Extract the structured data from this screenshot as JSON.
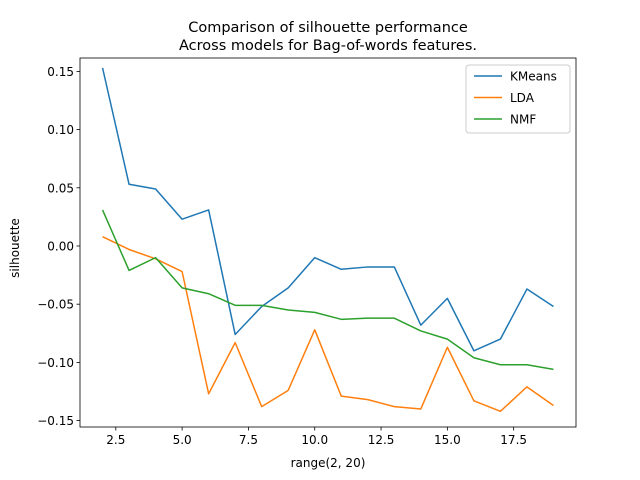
{
  "chart_data": {
    "type": "line",
    "title_line1": "Comparison of silhouette performance",
    "title_line2": "Across models for Bag-of-words features.",
    "xlabel": "range(2, 20)",
    "ylabel": "silhouette",
    "x": [
      2,
      3,
      4,
      5,
      6,
      7,
      8,
      9,
      10,
      11,
      12,
      13,
      14,
      15,
      16,
      17,
      18,
      19
    ],
    "xlim": [
      1.15,
      19.85
    ],
    "ylim": [
      -0.1555,
      0.1615
    ],
    "xticks": [
      2.5,
      5.0,
      7.5,
      10.0,
      12.5,
      15.0,
      17.5
    ],
    "xtick_labels": [
      "2.5",
      "5.0",
      "7.5",
      "10.0",
      "12.5",
      "15.0",
      "17.5"
    ],
    "yticks": [
      -0.15,
      -0.1,
      -0.05,
      0.0,
      0.05,
      0.1,
      0.15
    ],
    "ytick_labels": [
      "−0.15",
      "−0.10",
      "−0.05",
      "0.00",
      "0.05",
      "0.10",
      "0.15"
    ],
    "grid": false,
    "legend_position": "top-right",
    "series": [
      {
        "name": "KMeans",
        "color": "#1f77b4",
        "values": [
          0.153,
          0.053,
          0.049,
          0.023,
          0.031,
          -0.076,
          -0.052,
          -0.036,
          -0.01,
          -0.02,
          -0.018,
          -0.018,
          -0.068,
          -0.045,
          -0.09,
          -0.08,
          -0.037,
          -0.052
        ]
      },
      {
        "name": "LDA",
        "color": "#ff7f0e",
        "values": [
          0.008,
          -0.003,
          -0.011,
          -0.022,
          -0.127,
          -0.083,
          -0.138,
          -0.124,
          -0.072,
          -0.129,
          -0.132,
          -0.138,
          -0.14,
          -0.087,
          -0.133,
          -0.142,
          -0.121,
          -0.137
        ]
      },
      {
        "name": "NMF",
        "color": "#2ca02c",
        "values": [
          0.031,
          -0.021,
          -0.01,
          -0.036,
          -0.041,
          -0.051,
          -0.051,
          -0.055,
          -0.057,
          -0.063,
          -0.062,
          -0.062,
          -0.073,
          -0.08,
          -0.096,
          -0.102,
          -0.102,
          -0.106
        ]
      }
    ]
  }
}
